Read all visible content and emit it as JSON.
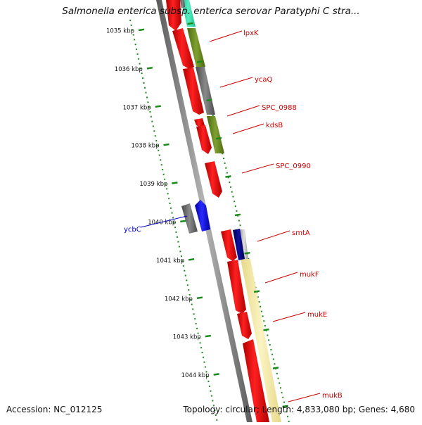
{
  "title": "Salmonella enterica subsp. enterica serovar Paratyphi C stra...",
  "footer": {
    "accession": "Accession: NC_012125",
    "summary": "Topology: circular; Length: 4,833,080 bp; Genes: 4,680"
  },
  "ticks": [
    {
      "label": "1035 kbp",
      "kbp": 1035
    },
    {
      "label": "1036 kbp",
      "kbp": 1036
    },
    {
      "label": "1037 kbp",
      "kbp": 1037
    },
    {
      "label": "1038 kbp",
      "kbp": 1038
    },
    {
      "label": "1039 kbp",
      "kbp": 1039
    },
    {
      "label": "1040 kbp",
      "kbp": 1040
    },
    {
      "label": "1041 kbp",
      "kbp": 1041
    },
    {
      "label": "1042 kbp",
      "kbp": 1042
    },
    {
      "label": "1043 kbp",
      "kbp": 1043
    },
    {
      "label": "1044 kbp",
      "kbp": 1044
    }
  ],
  "genes": [
    {
      "name": "lpxK",
      "label_color": "#cc0000"
    },
    {
      "name": "ycaQ",
      "label_color": "#cc0000"
    },
    {
      "name": "SPC_0988",
      "label_color": "#cc0000"
    },
    {
      "name": "kdsB",
      "label_color": "#cc0000"
    },
    {
      "name": "SPC_0990",
      "label_color": "#cc0000"
    },
    {
      "name": "ycbC",
      "label_color": "#0000cc"
    },
    {
      "name": "smtA",
      "label_color": "#cc0000"
    },
    {
      "name": "mukF",
      "label_color": "#cc0000"
    },
    {
      "name": "mukE",
      "label_color": "#cc0000"
    },
    {
      "name": "mukB",
      "label_color": "#cc0000"
    }
  ],
  "colors": {
    "gene_red": "#ff0000",
    "gene_blue": "#0000ff",
    "gene_navy": "#000080",
    "cog_olive": "#6b8e23",
    "cog_gray": "#707070",
    "cog_yellow": "#f5e9a0",
    "cog_cyan": "#33e6b0",
    "tick_green": "#1a8a1a",
    "backbone": "#888888"
  }
}
